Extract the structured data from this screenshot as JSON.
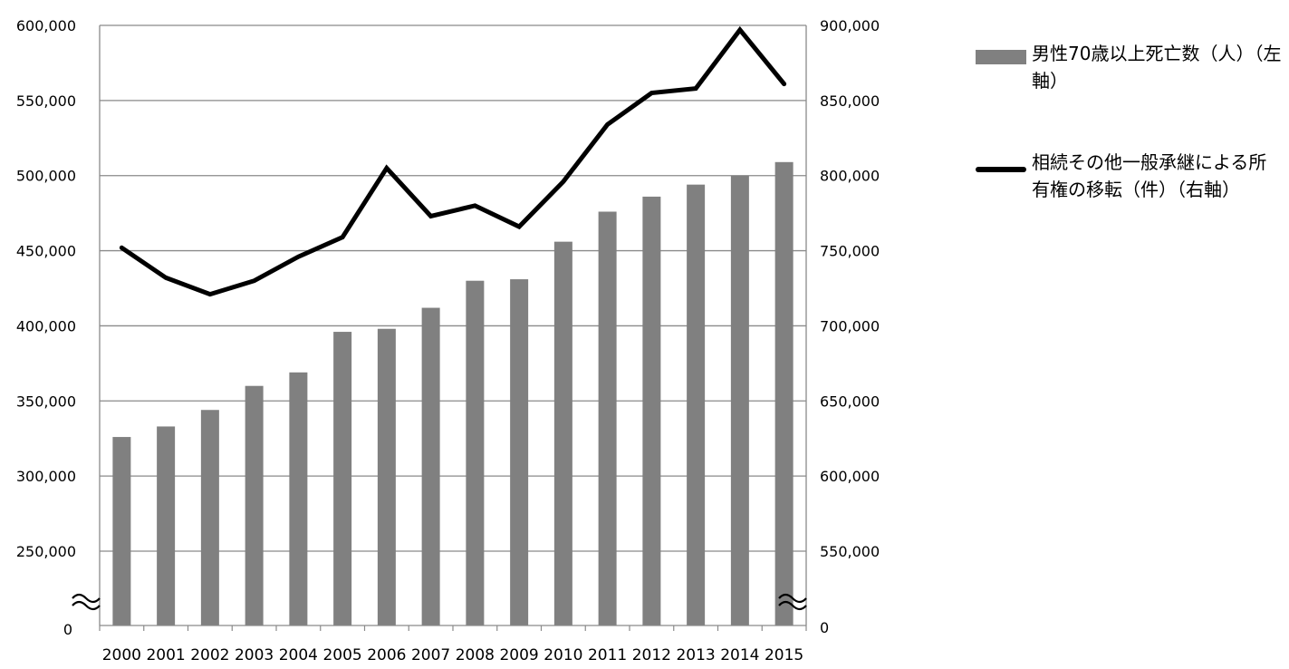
{
  "chart_data": {
    "type": "bar+line",
    "categories": [
      "2000",
      "2001",
      "2002",
      "2003",
      "2004",
      "2005",
      "2006",
      "2007",
      "2008",
      "2009",
      "2010",
      "2011",
      "2012",
      "2013",
      "2014",
      "2015"
    ],
    "series": [
      {
        "name": "男性70歳以上死亡数（人）（左軸）",
        "type": "bar",
        "axis": "left",
        "color": "#808080",
        "values": [
          326000,
          333000,
          344000,
          360000,
          369000,
          396000,
          398000,
          412000,
          430000,
          431000,
          456000,
          476000,
          486000,
          494000,
          500000,
          509000
        ]
      },
      {
        "name": "相続その他一般承継による所有権の移転（件）（右軸）",
        "type": "line",
        "axis": "right",
        "color": "#000000",
        "values": [
          752000,
          732000,
          721000,
          730000,
          746000,
          759000,
          805000,
          773000,
          780000,
          766000,
          796000,
          834000,
          855000,
          858000,
          897000,
          861000
        ]
      }
    ],
    "left_axis": {
      "ylim": [
        250000,
        600000
      ],
      "ticks": [
        "600,000",
        "550,000",
        "500,000",
        "450,000",
        "400,000",
        "350,000",
        "300,000",
        "250,000"
      ],
      "break_label": "0"
    },
    "right_axis": {
      "ylim": [
        550000,
        900000
      ],
      "ticks": [
        "900,000",
        "850,000",
        "800,000",
        "750,000",
        "700,000",
        "650,000",
        "600,000",
        "550,000"
      ],
      "break_label": "0"
    },
    "grid": true,
    "legend_position": "right",
    "axis_break": true
  }
}
